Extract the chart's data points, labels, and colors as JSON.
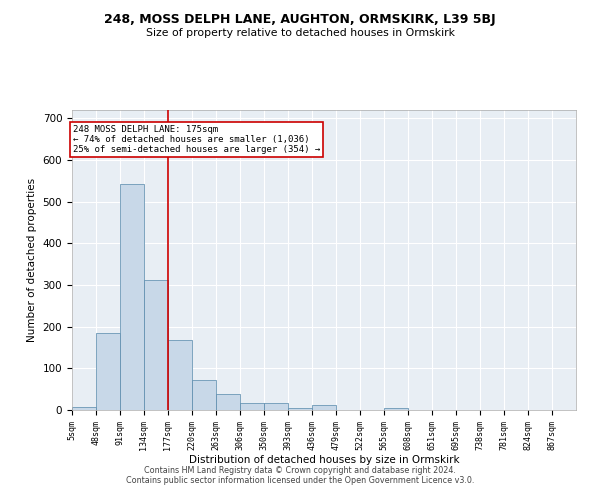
{
  "title": "248, MOSS DELPH LANE, AUGHTON, ORMSKIRK, L39 5BJ",
  "subtitle": "Size of property relative to detached houses in Ormskirk",
  "xlabel": "Distribution of detached houses by size in Ormskirk",
  "ylabel": "Number of detached properties",
  "bar_color": "#c8d8e8",
  "bar_edge_color": "#5588aa",
  "background_color": "#e8eef4",
  "annotation_text": "248 MOSS DELPH LANE: 175sqm\n← 74% of detached houses are smaller (1,036)\n25% of semi-detached houses are larger (354) →",
  "vline_color": "#cc0000",
  "bin_edges": [
    5,
    48,
    91,
    134,
    177,
    220,
    263,
    306,
    350,
    393,
    436,
    479,
    522,
    565,
    608,
    651,
    695,
    738,
    781,
    824,
    867
  ],
  "bin_labels": [
    "5sqm",
    "48sqm",
    "91sqm",
    "134sqm",
    "177sqm",
    "220sqm",
    "263sqm",
    "306sqm",
    "350sqm",
    "393sqm",
    "436sqm",
    "479sqm",
    "522sqm",
    "565sqm",
    "608sqm",
    "651sqm",
    "695sqm",
    "738sqm",
    "781sqm",
    "824sqm",
    "867sqm"
  ],
  "bar_heights": [
    8,
    186,
    543,
    313,
    168,
    72,
    38,
    17,
    17,
    5,
    12,
    0,
    0,
    5,
    0,
    0,
    0,
    0,
    0,
    0
  ],
  "ylim": [
    0,
    720
  ],
  "yticks": [
    0,
    100,
    200,
    300,
    400,
    500,
    600,
    700
  ],
  "vline_x_bin_index": 4,
  "footer_line1": "Contains HM Land Registry data © Crown copyright and database right 2024.",
  "footer_line2": "Contains public sector information licensed under the Open Government Licence v3.0."
}
